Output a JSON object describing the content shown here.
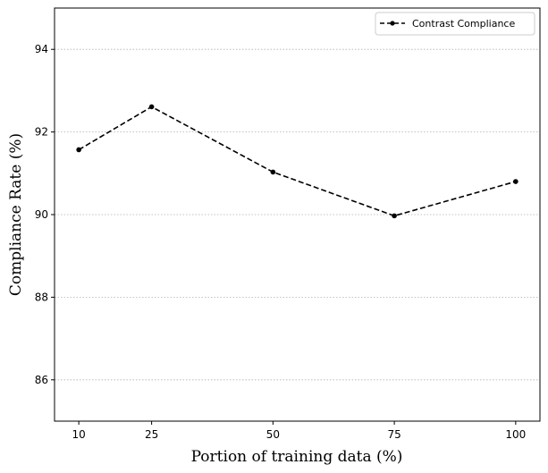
{
  "chart_data": {
    "type": "line",
    "title": "",
    "xlabel": "Portion of training data (%)",
    "ylabel": "Compliance Rate (%)",
    "x_categories": [
      "10",
      "25",
      "50",
      "75",
      "100"
    ],
    "x": [
      10,
      25,
      50,
      75,
      100
    ],
    "xlim": [
      5,
      105
    ],
    "ylim": [
      85,
      95
    ],
    "y_ticks": [
      86,
      88,
      90,
      92,
      94
    ],
    "grid": "horizontal-dotted",
    "legend_position": "top-right",
    "series": [
      {
        "name": "Contrast Compliance",
        "values": [
          91.57,
          92.61,
          91.03,
          89.97,
          90.8
        ],
        "color": "#000000",
        "line_style": "dashed",
        "marker": "circle"
      }
    ]
  }
}
